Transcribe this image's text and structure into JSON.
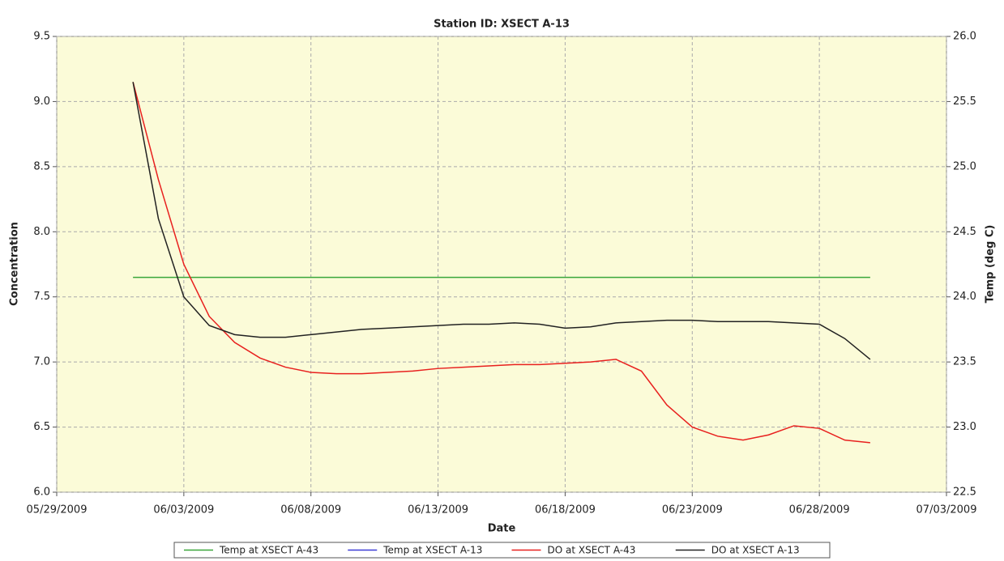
{
  "chart_data": {
    "type": "line",
    "title": "Station ID: XSECT A-13",
    "x_label": "Date",
    "y_label": "Concentration",
    "y2_label": "Temp  (deg C)",
    "x": [
      "06/01/2009",
      "06/02/2009",
      "06/03/2009",
      "06/04/2009",
      "06/05/2009",
      "06/06/2009",
      "06/07/2009",
      "06/08/2009",
      "06/09/2009",
      "06/10/2009",
      "06/11/2009",
      "06/12/2009",
      "06/13/2009",
      "06/14/2009",
      "06/15/2009",
      "06/16/2009",
      "06/17/2009",
      "06/18/2009",
      "06/19/2009",
      "06/20/2009",
      "06/21/2009",
      "06/22/2009",
      "06/23/2009",
      "06/24/2009",
      "06/25/2009",
      "06/26/2009",
      "06/27/2009",
      "06/28/2009",
      "06/29/2009",
      "06/30/2009"
    ],
    "xlim": [
      "05/29/2009",
      "07/03/2009"
    ],
    "xticks": [
      "05/29/2009",
      "06/03/2009",
      "06/08/2009",
      "06/13/2009",
      "06/18/2009",
      "06/23/2009",
      "06/28/2009",
      "07/03/2009"
    ],
    "ylim": [
      6,
      9.5
    ],
    "yticks": [
      {
        "value": 6,
        "label": "6.0"
      },
      {
        "value": 6.5,
        "label": "6.5"
      },
      {
        "value": 7,
        "label": "7.0"
      },
      {
        "value": 7.5,
        "label": "7.5"
      },
      {
        "value": 8,
        "label": "8.0"
      },
      {
        "value": 8.5,
        "label": "8.5"
      },
      {
        "value": 9,
        "label": "9.0"
      },
      {
        "value": 9.5,
        "label": "9.5"
      }
    ],
    "y2lim": [
      22.5,
      26
    ],
    "y2ticks": [
      {
        "value": 22.5,
        "label": "22.5"
      },
      {
        "value": 23,
        "label": "23.0"
      },
      {
        "value": 23.5,
        "label": "23.5"
      },
      {
        "value": 24,
        "label": "24.0"
      },
      {
        "value": 24.5,
        "label": "24.5"
      },
      {
        "value": 25,
        "label": "25.0"
      },
      {
        "value": 25.5,
        "label": "25.5"
      },
      {
        "value": 26,
        "label": "26.0"
      }
    ],
    "grid": true,
    "legend": "bottom",
    "series": [
      {
        "name": "Temp at XSECT A-43",
        "color": "#3aa63a",
        "axis": "y2",
        "values": [
          24.15,
          24.15,
          24.15,
          24.15,
          24.15,
          24.15,
          24.15,
          24.15,
          24.15,
          24.15,
          24.15,
          24.15,
          24.15,
          24.15,
          24.15,
          24.15,
          24.15,
          24.15,
          24.15,
          24.15,
          24.15,
          24.15,
          24.15,
          24.15,
          24.15,
          24.15,
          24.15,
          24.15,
          24.15,
          24.15
        ]
      },
      {
        "name": "Temp at XSECT A-13",
        "color": "#3b3bd6",
        "axis": "y2",
        "values": [
          null,
          null,
          null,
          null,
          null,
          null,
          null,
          null,
          null,
          null,
          null,
          null,
          null,
          null,
          null,
          null,
          null,
          null,
          null,
          null,
          null,
          null,
          null,
          null,
          null,
          null,
          null,
          null,
          null,
          null
        ]
      },
      {
        "name": "DO at XSECT A-43",
        "color": "#e8201e",
        "values": [
          9.15,
          8.4,
          7.75,
          7.35,
          7.15,
          7.03,
          6.96,
          6.92,
          6.91,
          6.91,
          6.92,
          6.93,
          6.95,
          6.96,
          6.97,
          6.98,
          6.98,
          6.99,
          7.0,
          7.02,
          6.93,
          6.67,
          6.5,
          6.43,
          6.4,
          6.44,
          6.51,
          6.49,
          6.4,
          6.38
        ]
      },
      {
        "name": "DO at XSECT A-13",
        "color": "#222222",
        "values": [
          9.15,
          8.1,
          7.5,
          7.28,
          7.21,
          7.19,
          7.19,
          7.21,
          7.23,
          7.25,
          7.26,
          7.27,
          7.28,
          7.29,
          7.29,
          7.3,
          7.29,
          7.26,
          7.27,
          7.3,
          7.31,
          7.32,
          7.32,
          7.31,
          7.31,
          7.31,
          7.3,
          7.29,
          7.18,
          7.02
        ]
      }
    ]
  }
}
